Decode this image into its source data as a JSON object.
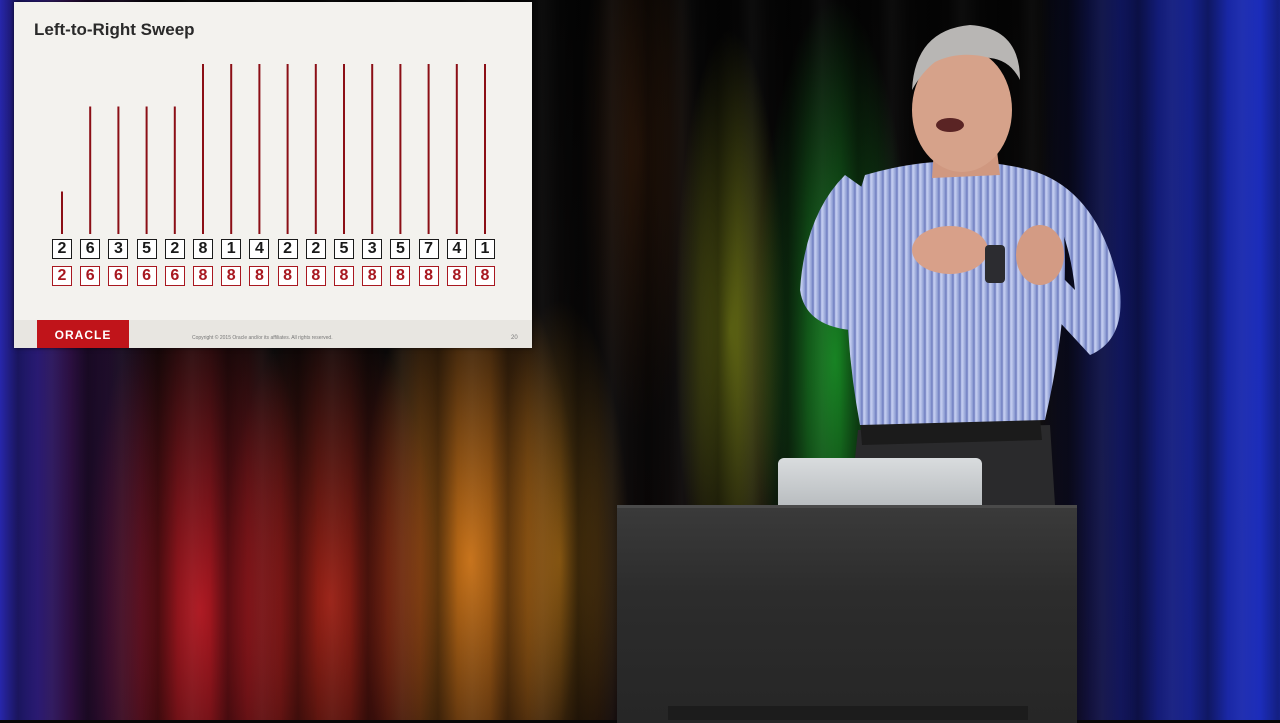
{
  "slide": {
    "title": "Left-to-Right Sweep",
    "row_input": [
      "2",
      "6",
      "3",
      "5",
      "2",
      "8",
      "1",
      "4",
      "2",
      "2",
      "5",
      "3",
      "5",
      "7",
      "4",
      "1"
    ],
    "row_max": [
      "2",
      "6",
      "6",
      "6",
      "6",
      "8",
      "8",
      "8",
      "8",
      "8",
      "8",
      "8",
      "8",
      "8",
      "8",
      "8"
    ],
    "bar_values": [
      2,
      6,
      6,
      6,
      6,
      8,
      8,
      8,
      8,
      8,
      8,
      8,
      8,
      8,
      8,
      8
    ],
    "bar_max": 8,
    "bar_color": "#8b0f16",
    "logo_text": "ORACLE",
    "copyright": "Copyright © 2015 Oracle and/or its affiliates. All rights reserved.",
    "page_number": "20"
  },
  "colors": {
    "oracle_red": "#c0141a",
    "cell_black": "#1a1a1a",
    "cell_red": "#a81820"
  }
}
